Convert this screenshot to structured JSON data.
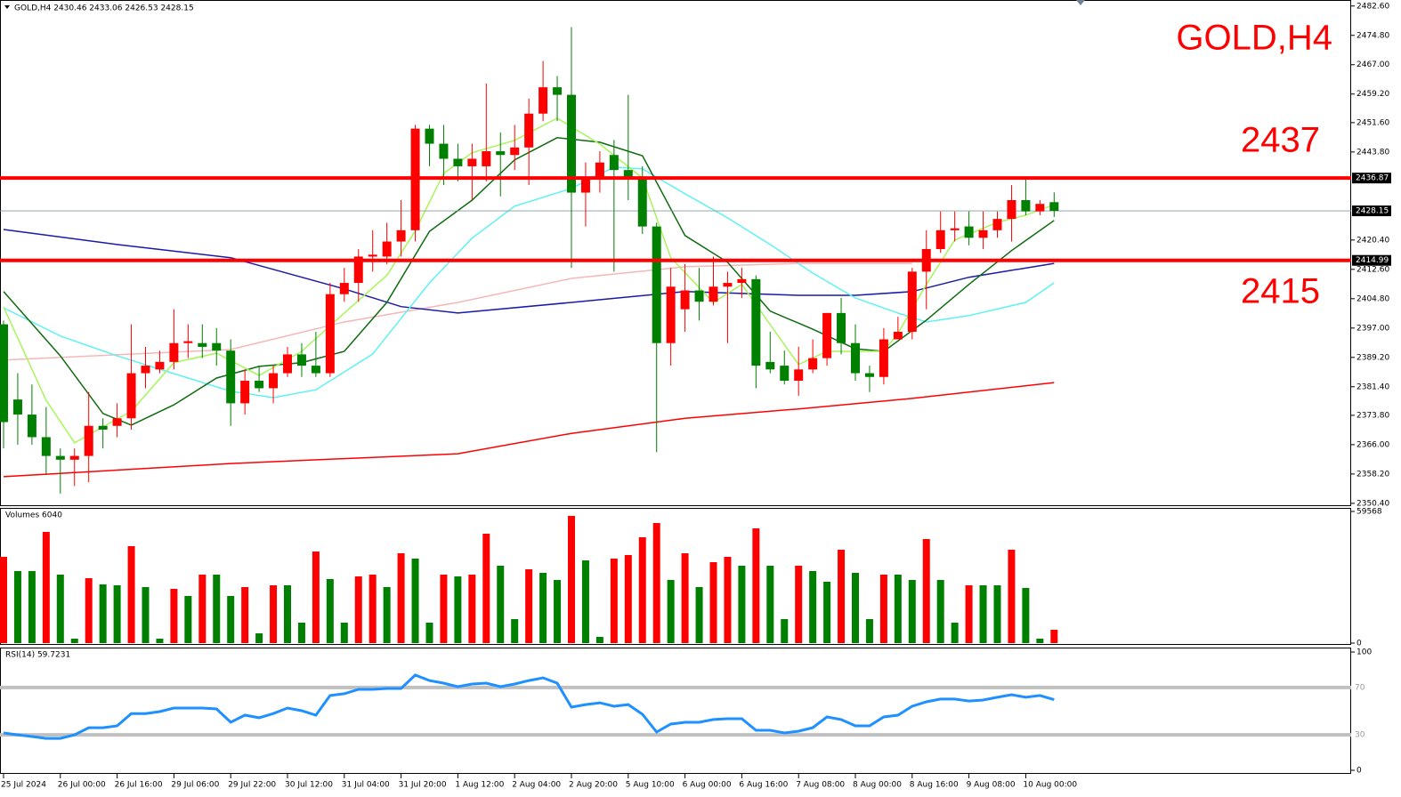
{
  "chart_data": [
    {
      "type": "candlestick",
      "title": "GOLD,H4",
      "header": "GOLD,H4  2430.46 2433.06 2426.53 2428.15",
      "categories": [
        "25 Jul 2024",
        null,
        null,
        null,
        "26 Jul 00:00",
        null,
        null,
        null,
        "26 Jul 16:00",
        null,
        null,
        null,
        "29 Jul 06:00",
        null,
        null,
        null,
        "29 Jul 22:00",
        null,
        null,
        null,
        "30 Jul 12:00",
        null,
        null,
        null,
        "31 Jul 04:00",
        null,
        null,
        null,
        "31 Jul 20:00",
        null,
        null,
        null,
        "1 Aug 12:00",
        null,
        null,
        null,
        "2 Aug 04:00",
        null,
        null,
        null,
        "2 Aug 20:00",
        null,
        null,
        null,
        "5 Aug 10:00",
        null,
        null,
        null,
        "6 Aug 00:00",
        null,
        null,
        null,
        "6 Aug 16:00",
        null,
        null,
        null,
        "7 Aug 08:00",
        null,
        null,
        null,
        "8 Aug 00:00",
        null,
        null,
        null,
        "8 Aug 16:00",
        null,
        null,
        null,
        "9 Aug 08:00",
        null,
        null,
        null,
        "10 Aug 00:00",
        null,
        null
      ],
      "open": [
        2398,
        2378,
        2374,
        2368,
        2363,
        2362,
        2363,
        2371,
        2371,
        2373,
        2385,
        2386,
        2388,
        2393,
        2393,
        2393,
        2391,
        2377,
        2383,
        2381,
        2385,
        2390,
        2387,
        2385,
        2406,
        2409,
        2416,
        2416,
        2420,
        2423,
        2450,
        2446,
        2442,
        2440,
        2440,
        2444,
        2443,
        2445,
        2454,
        2461,
        2459,
        2433,
        2437,
        2443,
        2439,
        2437,
        2424,
        2393,
        2402,
        2407,
        2404,
        2408,
        2409,
        2410,
        2388,
        2387,
        2383,
        2386,
        2389,
        2401,
        2393,
        2385,
        2384,
        2394,
        2396,
        2412,
        2418,
        2423,
        2424,
        2421,
        2423,
        2426,
        2431,
        2428,
        2430.46
      ],
      "high": [
        2399,
        2385,
        2382,
        2376,
        2365,
        2365,
        2380,
        2373,
        2377,
        2398,
        2392,
        2391,
        2402,
        2398,
        2398,
        2397,
        2394,
        2386,
        2387,
        2387,
        2392,
        2393,
        2396,
        2409,
        2413,
        2418,
        2423,
        2425,
        2431,
        2451,
        2451,
        2451,
        2446,
        2446,
        2462,
        2449,
        2451,
        2458,
        2468,
        2464,
        2477,
        2441,
        2444,
        2447,
        2459,
        2440,
        2425,
        2413,
        2414,
        2413,
        2416,
        2412,
        2413,
        2411,
        2396,
        2391,
        2392,
        2394,
        2401,
        2405,
        2398,
        2387,
        2397,
        2400,
        2413,
        2423,
        2428,
        2428,
        2428,
        2428,
        2428,
        2435,
        2437,
        2431,
        2433.06
      ],
      "low": [
        2365,
        2366,
        2366,
        2358,
        2353,
        2355,
        2356,
        2365,
        2368,
        2370,
        2381,
        2385,
        2386,
        2389,
        2389,
        2387,
        2371,
        2374,
        2380,
        2377,
        2384,
        2384,
        2384,
        2384,
        2404,
        2404,
        2412,
        2414,
        2416,
        2420,
        2440,
        2435,
        2436,
        2431,
        2436,
        2432,
        2439,
        2435,
        2452,
        2452,
        2413,
        2424,
        2433,
        2412,
        2431,
        2422,
        2364,
        2387,
        2396,
        2399,
        2403,
        2393,
        2405,
        2381,
        2385,
        2382,
        2379,
        2385,
        2387,
        2390,
        2383,
        2380,
        2382,
        2394,
        2394,
        2402,
        2417,
        2420,
        2419,
        2418,
        2421,
        2420,
        2427,
        2427,
        2426.53
      ],
      "close": [
        2372,
        2374,
        2368,
        2363,
        2362,
        2363,
        2371,
        2370,
        2373,
        2385,
        2387,
        2388,
        2393,
        2393.5,
        2392,
        2391,
        2377,
        2383,
        2381,
        2385,
        2390,
        2387,
        2385,
        2406,
        2409,
        2416,
        2416.5,
        2420,
        2423,
        2450,
        2446,
        2442,
        2440,
        2442,
        2444,
        2443,
        2445,
        2454,
        2461,
        2459,
        2433,
        2437,
        2441,
        2439,
        2437,
        2424,
        2393,
        2408,
        2407,
        2404,
        2408,
        2409,
        2410,
        2387,
        2386,
        2383,
        2386,
        2389,
        2401,
        2393,
        2385,
        2384,
        2394,
        2396,
        2412,
        2418,
        2423,
        2423.5,
        2421,
        2423,
        2426,
        2431,
        2428,
        2430,
        2428.15
      ],
      "up_color": "#ff0000",
      "down_color": "#008000",
      "overlays": [
        {
          "color": "#ff0000",
          "x": [
            0,
            16,
            32,
            40,
            48,
            56,
            64,
            74
          ],
          "values": [
            2357.5,
            2361,
            2363.6,
            2369,
            2373,
            2375.5,
            2378.3,
            2382.5
          ]
        },
        {
          "color": "#f4b8b8",
          "x": [
            0,
            16,
            24,
            32,
            40,
            48,
            56,
            64
          ],
          "values": [
            2388.5,
            2391.3,
            2398.6,
            2403.8,
            2410.2,
            2413.3,
            2414.2,
            2414.2
          ]
        },
        {
          "color": "#1a1aa8",
          "x": [
            0,
            8,
            16,
            24,
            28,
            32,
            40,
            48,
            56,
            60,
            64,
            68,
            74
          ],
          "values": [
            2423.2,
            2419.2,
            2415.7,
            2407.4,
            2402.7,
            2401,
            2403.8,
            2406.7,
            2405.7,
            2405.7,
            2406.7,
            2410.5,
            2414.2
          ]
        },
        {
          "color": "#5ef2f2",
          "x": [
            0,
            4,
            8,
            12,
            16,
            19,
            22,
            26,
            30,
            33,
            36,
            40,
            43,
            45,
            48,
            51,
            54,
            57,
            60,
            63,
            65,
            68,
            72,
            74
          ],
          "values": [
            2402.4,
            2394.9,
            2389.6,
            2384.9,
            2380.2,
            2378.5,
            2380.6,
            2390.1,
            2409,
            2420.9,
            2429.4,
            2434.1,
            2439.8,
            2439.3,
            2432.7,
            2426.3,
            2419.2,
            2411.6,
            2405,
            2401,
            2398.6,
            2400.3,
            2403.8,
            2409
          ]
        },
        {
          "color": "#0f6b0f",
          "x": [
            0,
            4,
            7,
            9,
            12,
            15,
            18,
            21,
            24,
            27,
            30,
            33,
            36,
            39,
            42,
            45,
            48,
            51,
            54,
            57,
            60,
            62,
            65,
            68,
            71,
            74
          ],
          "values": [
            2406.7,
            2389.6,
            2374.3,
            2371.2,
            2376.6,
            2383.7,
            2386.8,
            2387.8,
            2390.8,
            2403.8,
            2422.7,
            2431,
            2441.7,
            2447.6,
            2446.4,
            2442.8,
            2421.6,
            2414.5,
            2401.5,
            2396.7,
            2391.5,
            2390.8,
            2399.1,
            2408.6,
            2417.6,
            2425.6
          ]
        },
        {
          "color": "#a8f55a",
          "x": [
            0,
            3,
            5,
            7,
            9,
            12,
            15,
            18,
            21,
            24,
            27,
            29,
            31,
            33,
            36,
            39,
            42,
            45,
            47,
            50,
            52,
            54,
            56,
            58,
            60,
            62,
            63,
            65,
            67,
            70,
            72,
            74
          ],
          "values": [
            2402.6,
            2377.8,
            2366.5,
            2370.7,
            2374.9,
            2387.8,
            2390.3,
            2384.4,
            2390.8,
            2401,
            2411,
            2422.8,
            2438.1,
            2443.6,
            2446.9,
            2452.8,
            2445.9,
            2436.9,
            2415.7,
            2403.8,
            2408.6,
            2397.9,
            2387.3,
            2390.8,
            2390.8,
            2390.8,
            2395.6,
            2408.6,
            2420.4,
            2425.1,
            2427,
            2429.8
          ]
        }
      ],
      "levels": [
        {
          "value": 2436.87,
          "annotation": "2437"
        },
        {
          "value": 2414.99,
          "annotation": "2415"
        }
      ],
      "level_color": "#ff0000",
      "last_price": 2428.15,
      "ylim": [
        2349.9,
        2484.2
      ],
      "yticks": [
        {
          "value": 2482.6,
          "label": "2482.60"
        },
        {
          "value": 2474.8,
          "label": "2474.80"
        },
        {
          "value": 2467,
          "label": "2467.00"
        },
        {
          "value": 2459.2,
          "label": "2459.20"
        },
        {
          "value": 2451.6,
          "label": "2451.60"
        },
        {
          "value": 2443.8,
          "label": "2443.80"
        },
        {
          "value": 2420.4,
          "label": "2420.40"
        },
        {
          "value": 2412.6,
          "label": "2412.60"
        },
        {
          "value": 2404.8,
          "label": "2404.80"
        },
        {
          "value": 2397,
          "label": "2397.00"
        },
        {
          "value": 2389.2,
          "label": "2389.20"
        },
        {
          "value": 2381.4,
          "label": "2381.40"
        },
        {
          "value": 2373.8,
          "label": "2373.80"
        },
        {
          "value": 2366,
          "label": "2366.00"
        },
        {
          "value": 2358.2,
          "label": "2358.20"
        },
        {
          "value": 2350.4,
          "label": "2350.40"
        }
      ]
    },
    {
      "type": "volume",
      "title": "Volumes 6040",
      "values": [
        39043,
        32603,
        32603,
        50313,
        30993,
        2013,
        29383,
        26565,
        26163,
        43873,
        25358,
        2013,
        24553,
        21333,
        30993,
        30993,
        21333,
        25358,
        4428,
        26163,
        26163,
        9258,
        41458,
        28980,
        9258,
        30188,
        30993,
        25358,
        40653,
        38238,
        9258,
        30993,
        30188,
        30993,
        49508,
        35018,
        10868,
        33408,
        31798,
        28578,
        57558,
        37433,
        2818,
        38238,
        39848,
        47898,
        54338,
        28578,
        40653,
        25358,
        36628,
        39043,
        35018,
        51923,
        35018,
        10868,
        35018,
        32603,
        27773,
        42263,
        31798,
        10868,
        30993,
        30993,
        28578,
        47093,
        28578,
        9258,
        26163,
        26163,
        26163,
        42263,
        24955,
        2013,
        6040
      ],
      "up_color": "#ff0000",
      "down_color": "#008000",
      "ylim": [
        0,
        59568
      ],
      "yticks": [
        0,
        59568
      ]
    },
    {
      "type": "line",
      "title": "RSI(14) 59.7231",
      "values": [
        31.6,
        30,
        28.6,
        27,
        27,
        30,
        36,
        36,
        37.6,
        48,
        48,
        49.6,
        52.6,
        52.6,
        52.6,
        51.9,
        40.6,
        46.6,
        44.4,
        48,
        52.6,
        50.4,
        46.6,
        63.2,
        64.7,
        68.4,
        68.4,
        69.2,
        69.2,
        80.5,
        75.9,
        73.7,
        70.7,
        72.9,
        73.7,
        70.7,
        72.9,
        75.9,
        78.2,
        73.7,
        53.4,
        55.6,
        57.1,
        54.1,
        55.6,
        47.4,
        32.3,
        39.1,
        40.6,
        40.6,
        42.9,
        43.6,
        43.6,
        33.8,
        33.8,
        31.6,
        33.1,
        36,
        45.1,
        42.9,
        37.6,
        37.6,
        45.1,
        46.6,
        54.1,
        57.9,
        60.2,
        60.2,
        58.6,
        59.4,
        61.7,
        63.9,
        61.7,
        63.2,
        59.7231
      ],
      "color": "#1e90ff",
      "levels": [
        70,
        30
      ],
      "level_color": "#c0c0c0",
      "ylim": [
        0,
        100
      ],
      "yticks": [
        0,
        100
      ]
    }
  ]
}
